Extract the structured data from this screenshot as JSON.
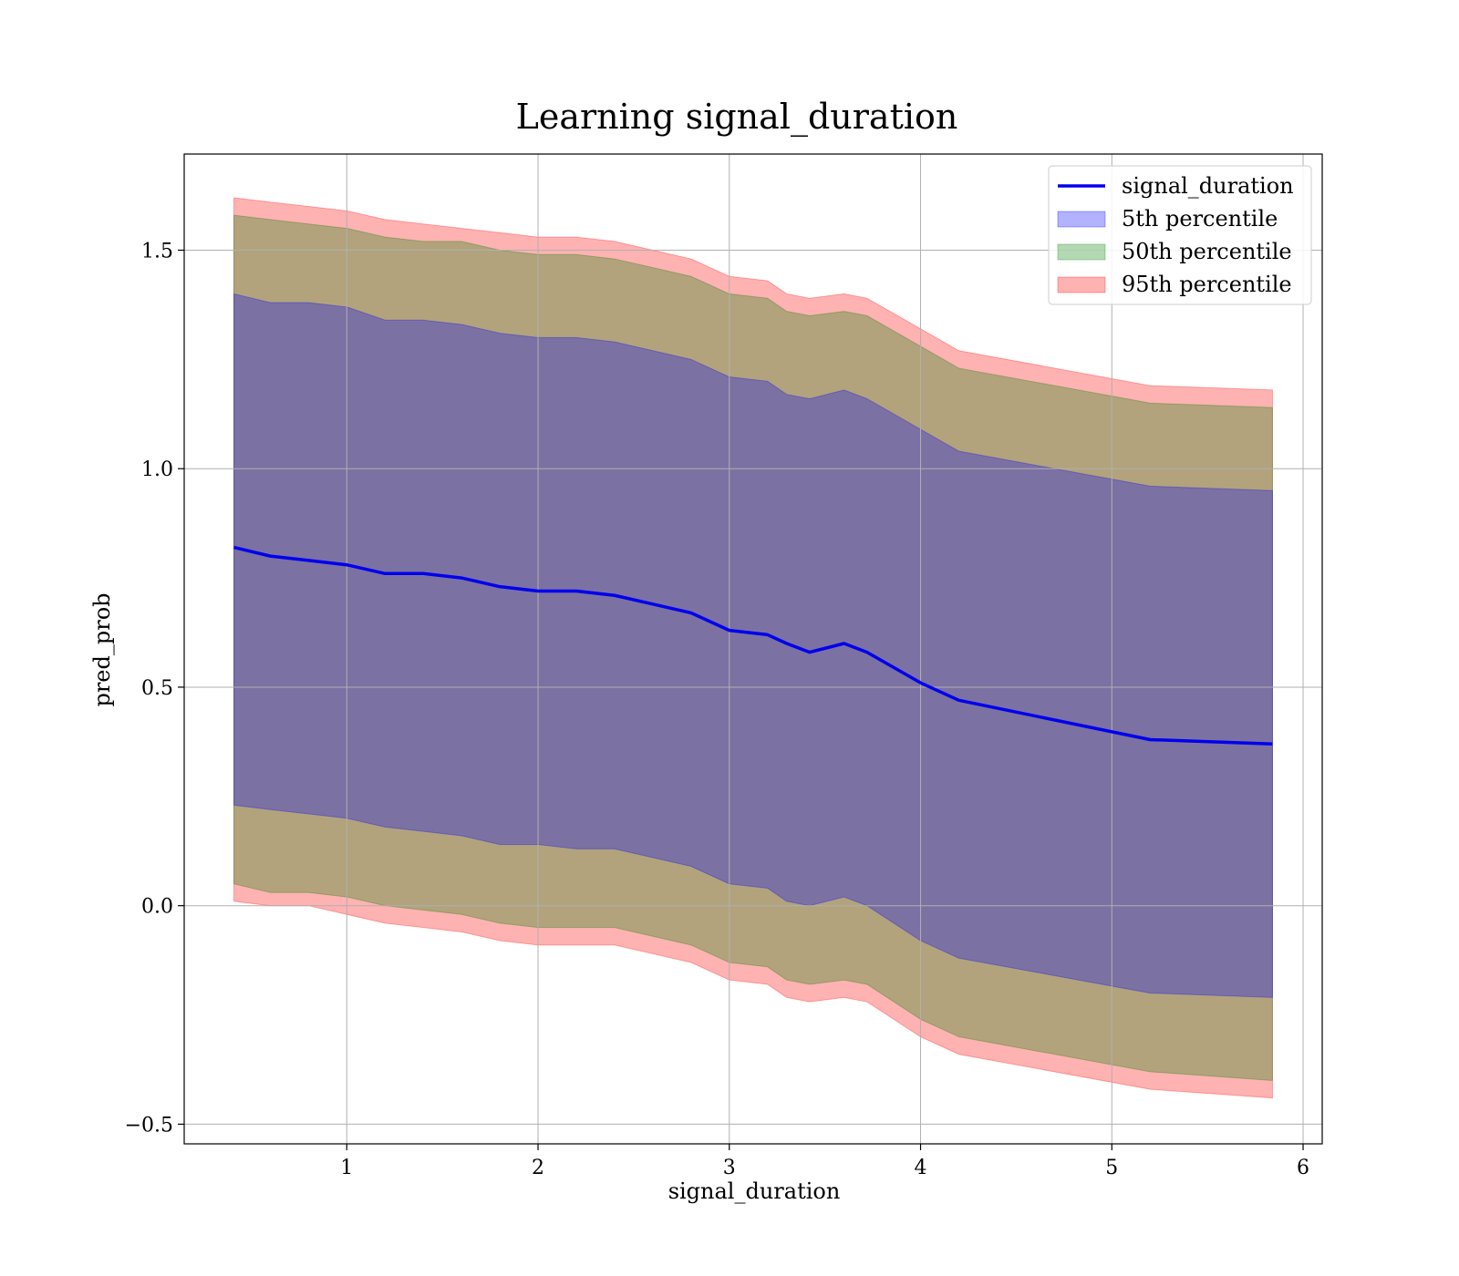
{
  "chart_data": {
    "type": "area",
    "title": "Learning signal_duration",
    "xlabel": "signal_duration",
    "ylabel": "pred_prob",
    "xlim": [
      0.15,
      6.1
    ],
    "ylim": [
      -0.545,
      1.72
    ],
    "xticks": [
      1,
      2,
      3,
      4,
      5,
      6
    ],
    "xtick_labels": [
      "1",
      "2",
      "3",
      "4",
      "5",
      "6"
    ],
    "yticks": [
      -0.5,
      0.0,
      0.5,
      1.0,
      1.5
    ],
    "ytick_labels": [
      "−0.5",
      "0.0",
      "0.5",
      "1.0",
      "1.5"
    ],
    "grid": true,
    "legend_position": "top-right",
    "x": [
      0.41,
      0.6,
      0.8,
      1.0,
      1.2,
      1.4,
      1.6,
      1.8,
      2.0,
      2.2,
      2.4,
      2.6,
      2.8,
      3.0,
      3.2,
      3.3,
      3.42,
      3.6,
      3.72,
      4.0,
      4.2,
      5.2,
      5.84
    ],
    "series": [
      {
        "name": "signal_duration",
        "kind": "line",
        "color": "#0000ee",
        "values": [
          0.82,
          0.8,
          0.79,
          0.78,
          0.76,
          0.76,
          0.75,
          0.73,
          0.72,
          0.72,
          0.71,
          0.69,
          0.67,
          0.63,
          0.62,
          0.6,
          0.58,
          0.6,
          0.58,
          0.51,
          0.47,
          0.38,
          0.37
        ]
      },
      {
        "name": "5th percentile",
        "kind": "band",
        "color": "#0000ff",
        "lower": [
          0.23,
          0.22,
          0.21,
          0.2,
          0.18,
          0.17,
          0.16,
          0.14,
          0.14,
          0.13,
          0.13,
          0.11,
          0.09,
          0.05,
          0.04,
          0.01,
          0.0,
          0.02,
          0.0,
          -0.08,
          -0.12,
          -0.2,
          -0.21
        ],
        "upper": [
          1.4,
          1.38,
          1.38,
          1.37,
          1.34,
          1.34,
          1.33,
          1.31,
          1.3,
          1.3,
          1.29,
          1.27,
          1.25,
          1.21,
          1.2,
          1.17,
          1.16,
          1.18,
          1.16,
          1.09,
          1.04,
          0.96,
          0.95
        ]
      },
      {
        "name": "50th percentile",
        "kind": "band",
        "color": "#008000",
        "lower": [
          0.05,
          0.03,
          0.03,
          0.02,
          0.0,
          -0.01,
          -0.02,
          -0.04,
          -0.05,
          -0.05,
          -0.05,
          -0.07,
          -0.09,
          -0.13,
          -0.14,
          -0.17,
          -0.18,
          -0.17,
          -0.18,
          -0.26,
          -0.3,
          -0.38,
          -0.4
        ],
        "upper": [
          1.58,
          1.57,
          1.56,
          1.55,
          1.53,
          1.52,
          1.52,
          1.5,
          1.49,
          1.49,
          1.48,
          1.46,
          1.44,
          1.4,
          1.39,
          1.36,
          1.35,
          1.36,
          1.35,
          1.28,
          1.23,
          1.15,
          1.14
        ]
      },
      {
        "name": "95th percentile",
        "kind": "band",
        "color": "#ff0000",
        "lower": [
          0.01,
          0.0,
          0.0,
          -0.02,
          -0.04,
          -0.05,
          -0.06,
          -0.08,
          -0.09,
          -0.09,
          -0.09,
          -0.11,
          -0.13,
          -0.17,
          -0.18,
          -0.21,
          -0.22,
          -0.21,
          -0.22,
          -0.3,
          -0.34,
          -0.42,
          -0.44
        ],
        "upper": [
          1.62,
          1.61,
          1.6,
          1.59,
          1.57,
          1.56,
          1.55,
          1.54,
          1.53,
          1.53,
          1.52,
          1.5,
          1.48,
          1.44,
          1.43,
          1.4,
          1.39,
          1.4,
          1.39,
          1.32,
          1.27,
          1.19,
          1.18
        ]
      }
    ]
  }
}
